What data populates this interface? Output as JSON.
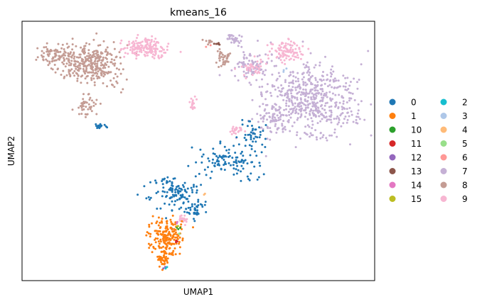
{
  "chart_data": {
    "type": "scatter",
    "title": "kmeans_16",
    "xlabel": "UMAP1",
    "ylabel": "UMAP2",
    "xlim": [
      0,
      100
    ],
    "ylim": [
      0,
      100
    ],
    "grid": false,
    "ticks": false,
    "legend_position": "right-outside",
    "legend_columns": 2,
    "series": [
      {
        "name": "0",
        "color": "#1f77b4",
        "regions": [
          {
            "cx": 44,
            "cy": 34,
            "rx": 8,
            "ry": 7,
            "n": 130
          },
          {
            "cx": 59,
            "cy": 46,
            "rx": 8,
            "ry": 6,
            "n": 110
          },
          {
            "cx": 65,
            "cy": 57,
            "rx": 4,
            "ry": 5,
            "n": 40
          },
          {
            "cx": 22.5,
            "cy": 59.5,
            "rx": 1.3,
            "ry": 1,
            "n": 20
          },
          {
            "cx": 49,
            "cy": 27,
            "rx": 3,
            "ry": 3,
            "n": 30
          }
        ]
      },
      {
        "name": "1",
        "color": "#ff7f0e",
        "regions": [
          {
            "cx": 41,
            "cy": 17,
            "rx": 4.5,
            "ry": 7,
            "n": 190
          },
          {
            "cx": 40,
            "cy": 8,
            "rx": 2,
            "ry": 3,
            "n": 40
          }
        ]
      },
      {
        "name": "10",
        "color": "#2ca02c",
        "regions": [
          {
            "cx": 44.5,
            "cy": 20,
            "rx": 0.6,
            "ry": 0.6,
            "n": 3
          }
        ]
      },
      {
        "name": "11",
        "color": "#d62728",
        "regions": [
          {
            "cx": 43.5,
            "cy": 15,
            "rx": 0.6,
            "ry": 0.6,
            "n": 3
          }
        ]
      },
      {
        "name": "12",
        "color": "#9467bd",
        "regions": [
          {
            "cx": 40.5,
            "cy": 5,
            "rx": 0.5,
            "ry": 0.5,
            "n": 2
          }
        ]
      },
      {
        "name": "13",
        "color": "#8c564b",
        "regions": [
          {
            "cx": 55.5,
            "cy": 91,
            "rx": 1.5,
            "ry": 1,
            "n": 6
          }
        ]
      },
      {
        "name": "14",
        "color": "#e377c2",
        "regions": [
          {
            "cx": 44.5,
            "cy": 22,
            "rx": 0.5,
            "ry": 0.5,
            "n": 2
          }
        ]
      },
      {
        "name": "15",
        "color": "#bcbd22",
        "regions": [
          {
            "cx": 44,
            "cy": 21,
            "rx": 0.5,
            "ry": 0.5,
            "n": 2
          }
        ]
      },
      {
        "name": "2",
        "color": "#17becf",
        "regions": [
          {
            "cx": 41,
            "cy": 5,
            "rx": 0.5,
            "ry": 0.5,
            "n": 2
          }
        ]
      },
      {
        "name": "3",
        "color": "#aec7e8",
        "regions": [
          {
            "cx": 74.5,
            "cy": 81,
            "rx": 1,
            "ry": 1,
            "n": 3
          }
        ]
      },
      {
        "name": "4",
        "color": "#ffbb78",
        "regions": [
          {
            "cx": 52,
            "cy": 33,
            "rx": 0.6,
            "ry": 0.6,
            "n": 2
          }
        ]
      },
      {
        "name": "5",
        "color": "#98df8a",
        "regions": [
          {
            "cx": 44.5,
            "cy": 18,
            "rx": 0.6,
            "ry": 0.6,
            "n": 2
          }
        ]
      },
      {
        "name": "6",
        "color": "#ff9896",
        "regions": [
          {
            "cx": 53,
            "cy": 91,
            "rx": 1,
            "ry": 1,
            "n": 2
          }
        ]
      },
      {
        "name": "7",
        "color": "#c5b0d5",
        "regions": [
          {
            "cx": 82,
            "cy": 69,
            "rx": 13,
            "ry": 14,
            "n": 560
          },
          {
            "cx": 65,
            "cy": 83,
            "rx": 5,
            "ry": 6,
            "n": 90
          },
          {
            "cx": 70,
            "cy": 62,
            "rx": 4,
            "ry": 5,
            "n": 60
          },
          {
            "cx": 60,
            "cy": 93,
            "rx": 2,
            "ry": 2,
            "n": 30
          }
        ]
      },
      {
        "name": "8",
        "color": "#c49c94",
        "regions": [
          {
            "cx": 20,
            "cy": 84,
            "rx": 8,
            "ry": 8,
            "n": 330
          },
          {
            "cx": 9,
            "cy": 87,
            "rx": 5,
            "ry": 4,
            "n": 80
          },
          {
            "cx": 18,
            "cy": 68,
            "rx": 3,
            "ry": 6,
            "n": 45
          },
          {
            "cx": 57,
            "cy": 86,
            "rx": 2,
            "ry": 3,
            "n": 40
          },
          {
            "cx": 53,
            "cy": 92,
            "rx": 1.5,
            "ry": 1,
            "n": 10
          }
        ]
      },
      {
        "name": "9",
        "color": "#f7b6d2",
        "regions": [
          {
            "cx": 35,
            "cy": 90,
            "rx": 6,
            "ry": 4,
            "n": 170
          },
          {
            "cx": 75,
            "cy": 88,
            "rx": 5,
            "ry": 5,
            "n": 100
          },
          {
            "cx": 65,
            "cy": 82,
            "rx": 3,
            "ry": 3,
            "n": 40
          },
          {
            "cx": 48.5,
            "cy": 68,
            "rx": 1,
            "ry": 3,
            "n": 20
          },
          {
            "cx": 45.5,
            "cy": 24,
            "rx": 1.5,
            "ry": 2,
            "n": 20
          },
          {
            "cx": 61,
            "cy": 58,
            "rx": 2,
            "ry": 1.5,
            "n": 25
          }
        ]
      }
    ]
  }
}
